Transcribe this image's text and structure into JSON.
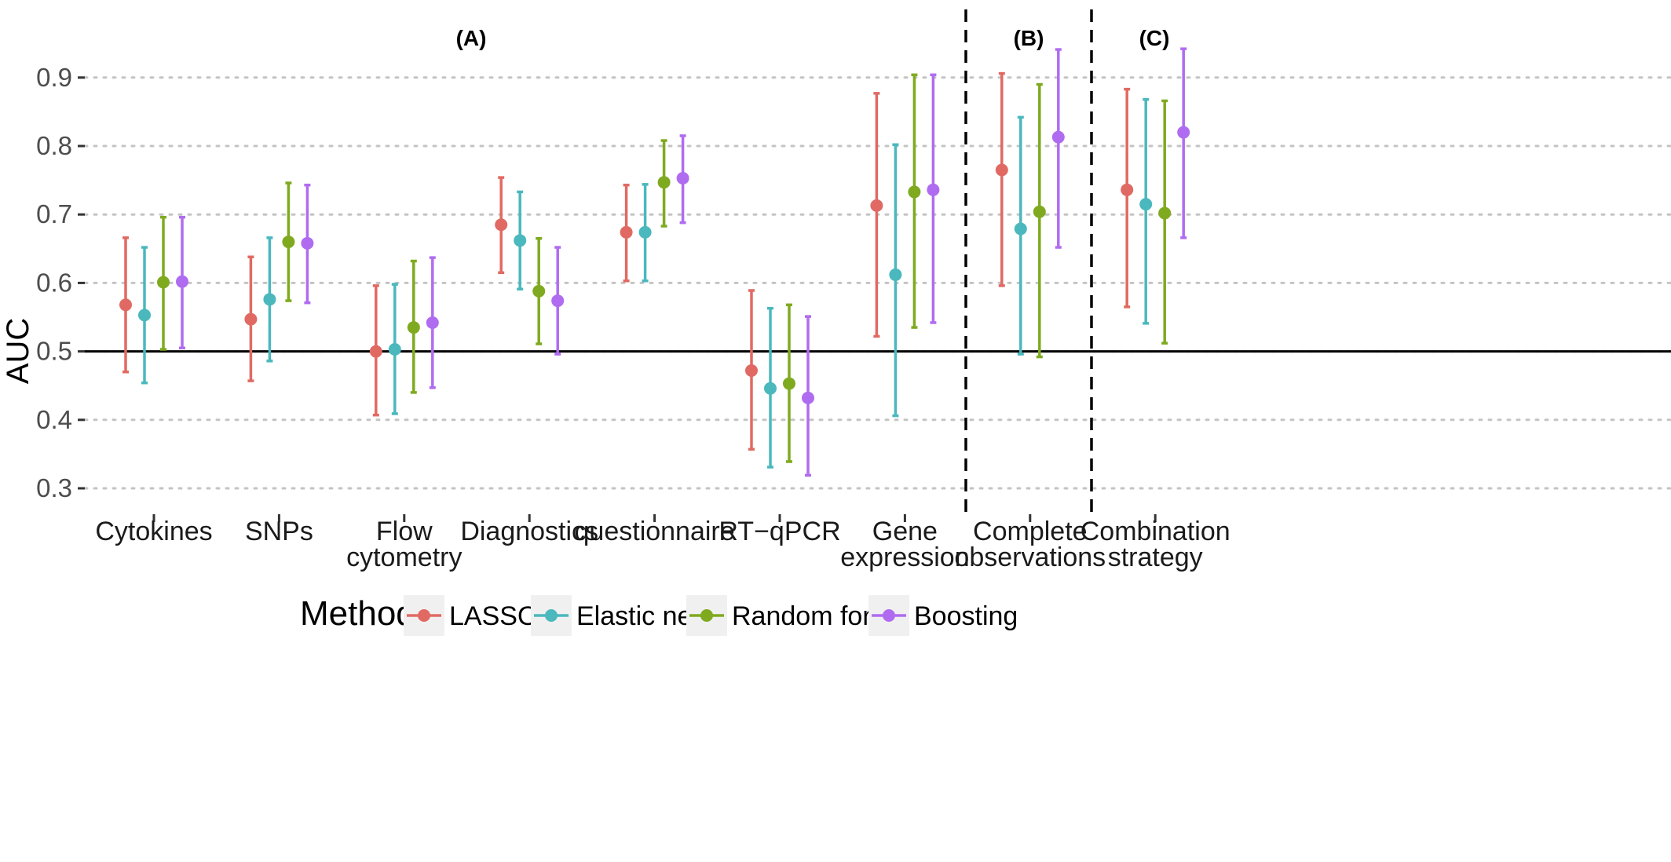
{
  "chart_data": {
    "type": "scatter",
    "title": "",
    "ylabel": "AUC",
    "xlabel": "",
    "ylim": [
      0.27,
      0.95
    ],
    "yticks": [
      "0.3",
      "0.4",
      "0.5",
      "0.6",
      "0.7",
      "0.8",
      "0.9"
    ],
    "grid": "horizontal dotted",
    "reference_line": 0.5,
    "panels": [
      {
        "label": "(A)",
        "categories": [
          "Cytokines",
          "SNPs",
          "Flow cytometry",
          "Diagnostics",
          "questionnaire",
          "RT−qPCR",
          "Gene expression"
        ]
      },
      {
        "label": "(B)",
        "categories": [
          "Complete observations"
        ]
      },
      {
        "label": "(C)",
        "categories": [
          "Combination strategy"
        ]
      }
    ],
    "categories": [
      [
        "Cytokines"
      ],
      [
        "SNPs"
      ],
      [
        "Flow",
        "cytometry"
      ],
      [
        "Diagnostics"
      ],
      [
        "questionnaire"
      ],
      [
        "RT−qPCR"
      ],
      [
        "Gene",
        "expression"
      ],
      [
        "Complete",
        "observations"
      ],
      [
        "Combination",
        "strategy"
      ]
    ],
    "legend": {
      "title": "Method",
      "position": "bottom"
    },
    "series": [
      {
        "name": "LASSO",
        "color": "#e06a63",
        "values": [
          0.568,
          0.547,
          0.5,
          0.685,
          0.674,
          0.472,
          0.713,
          0.765,
          0.736
        ],
        "lower": [
          0.47,
          0.457,
          0.407,
          0.615,
          0.603,
          0.357,
          0.522,
          0.596,
          0.565
        ],
        "upper": [
          0.666,
          0.638,
          0.596,
          0.754,
          0.743,
          0.589,
          0.877,
          0.906,
          0.883
        ]
      },
      {
        "name": "Elastic net",
        "color": "#4ab8bd",
        "values": [
          0.553,
          0.576,
          0.503,
          0.662,
          0.674,
          0.446,
          0.612,
          0.679,
          0.715
        ],
        "lower": [
          0.454,
          0.486,
          0.409,
          0.591,
          0.603,
          0.331,
          0.406,
          0.496,
          0.541
        ],
        "upper": [
          0.652,
          0.666,
          0.598,
          0.733,
          0.744,
          0.563,
          0.802,
          0.842,
          0.868
        ]
      },
      {
        "name": "Random forest",
        "color": "#7faa20",
        "values": [
          0.601,
          0.66,
          0.535,
          0.588,
          0.747,
          0.453,
          0.733,
          0.704,
          0.702
        ],
        "lower": [
          0.503,
          0.574,
          0.44,
          0.511,
          0.683,
          0.339,
          0.535,
          0.492,
          0.512
        ],
        "upper": [
          0.696,
          0.746,
          0.632,
          0.665,
          0.808,
          0.568,
          0.904,
          0.89,
          0.866
        ]
      },
      {
        "name": "Boosting",
        "color": "#b06cf0",
        "values": [
          0.602,
          0.658,
          0.542,
          0.574,
          0.753,
          0.432,
          0.736,
          0.813,
          0.82
        ],
        "lower": [
          0.505,
          0.571,
          0.447,
          0.496,
          0.688,
          0.319,
          0.542,
          0.652,
          0.666
        ],
        "upper": [
          0.696,
          0.743,
          0.637,
          0.652,
          0.815,
          0.551,
          0.904,
          0.941,
          0.942
        ]
      }
    ]
  }
}
